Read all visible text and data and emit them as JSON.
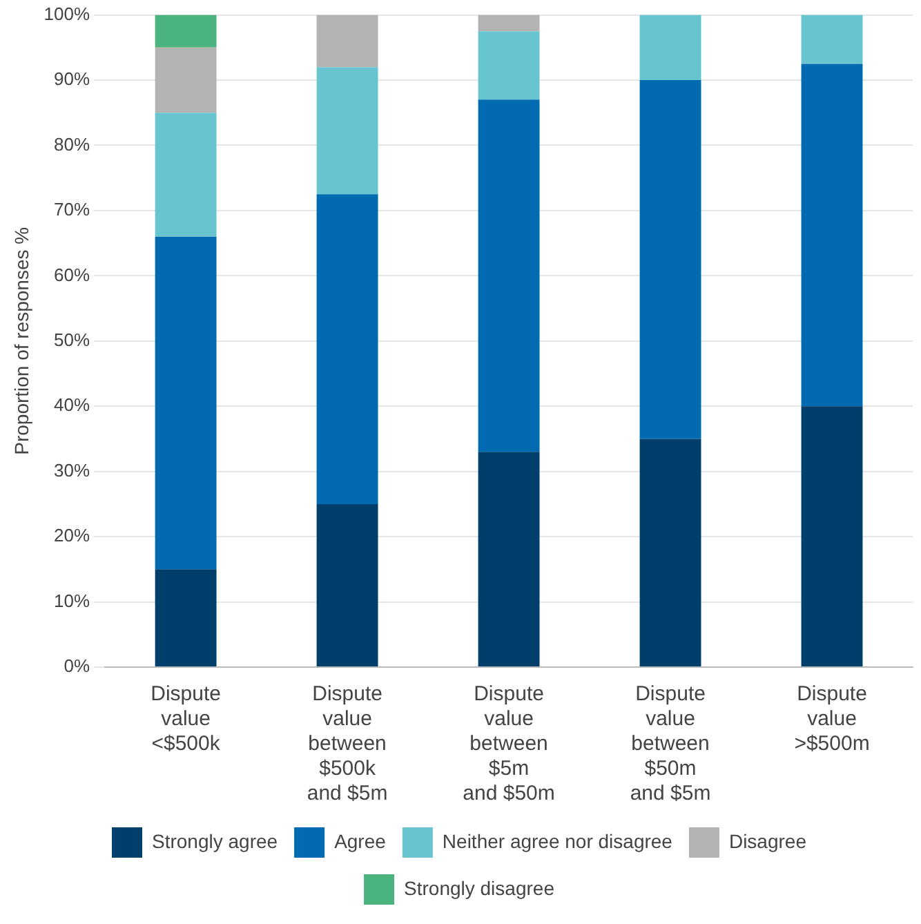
{
  "chart_data": {
    "type": "bar",
    "stacked": true,
    "ylabel": "Proportion of responses %",
    "categories": [
      "Dispute value <$500k",
      "Dispute value between $500k and $5m",
      "Dispute value between $5m and $50m",
      "Dispute value between $50m and $5m",
      "Dispute value >$500m"
    ],
    "series": [
      {
        "name": "Strongly agree",
        "color": "#003f6b",
        "values": [
          15,
          25,
          33,
          35,
          40
        ]
      },
      {
        "name": "Agree",
        "color": "#006bb0",
        "values": [
          51,
          47.5,
          54,
          55,
          52.5
        ]
      },
      {
        "name": "Neither agree nor disagree",
        "color": "#68c4cf",
        "values": [
          19,
          19.5,
          10.5,
          10,
          7.5
        ]
      },
      {
        "name": "Disagree",
        "color": "#b3b3b3",
        "values": [
          10,
          8,
          2.5,
          0,
          0
        ]
      },
      {
        "name": "Strongly disagree",
        "color": "#4bb37d",
        "values": [
          5,
          0,
          0,
          0,
          0
        ]
      }
    ],
    "ylim": [
      0,
      100
    ],
    "yticks": [
      {
        "value": 0,
        "label": "0%"
      },
      {
        "value": 10,
        "label": "10%"
      },
      {
        "value": 20,
        "label": "20%"
      },
      {
        "value": 30,
        "label": "30%"
      },
      {
        "value": 40,
        "label": "40%"
      },
      {
        "value": 50,
        "label": "50%"
      },
      {
        "value": 60,
        "label": "60%"
      },
      {
        "value": 70,
        "label": "70%"
      },
      {
        "value": 80,
        "label": "80%"
      },
      {
        "value": 90,
        "label": "90%"
      },
      {
        "value": 100,
        "label": "100%"
      }
    ],
    "grid": "y",
    "legend": "bottom"
  }
}
